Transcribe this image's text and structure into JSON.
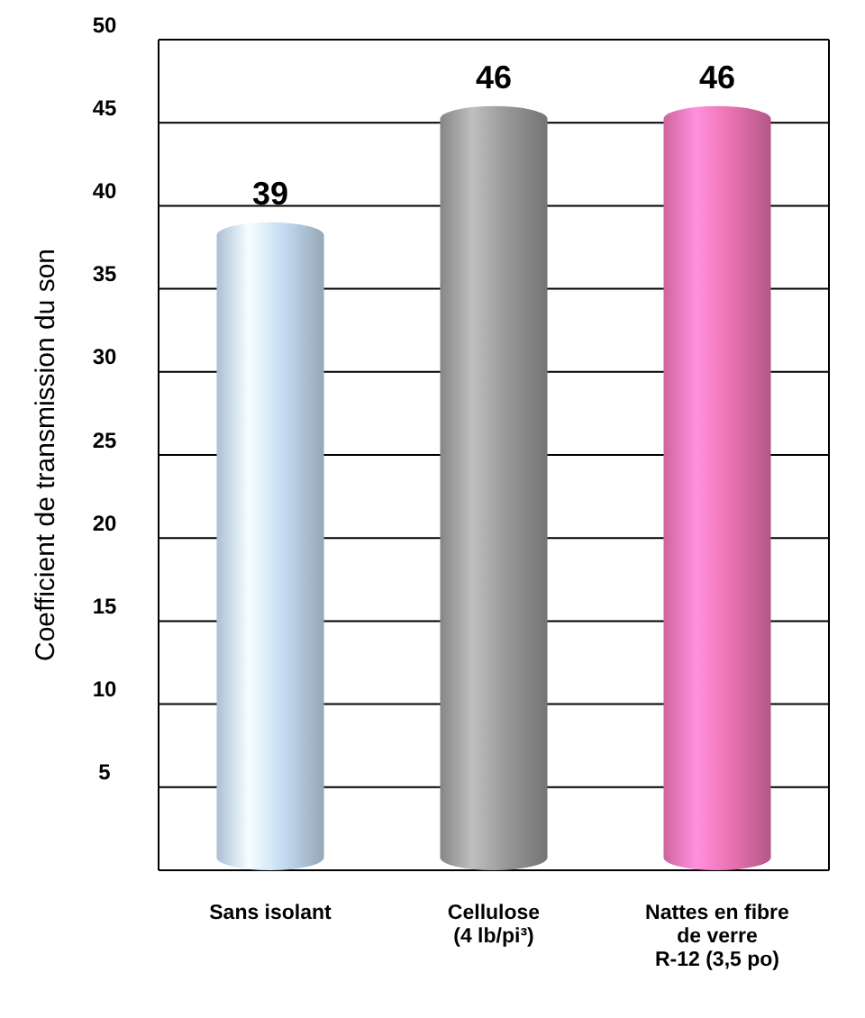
{
  "chart_data": {
    "type": "bar",
    "ylabel": "Coefficient de transmission du son",
    "categories": [
      "Sans isolant",
      "Cellulose\n(4 lb/pi³)",
      "Nattes en fibre\nde verre\nR-12 (3,5 po)"
    ],
    "values": [
      39,
      46,
      46
    ],
    "colors": [
      "#c6def4",
      "#9a9a9a",
      "#ee74b4"
    ],
    "ylim": [
      0,
      50
    ],
    "yticks": [
      5,
      10,
      15,
      20,
      25,
      30,
      35,
      40,
      45,
      50
    ],
    "grid": "y",
    "data_labels": true
  }
}
